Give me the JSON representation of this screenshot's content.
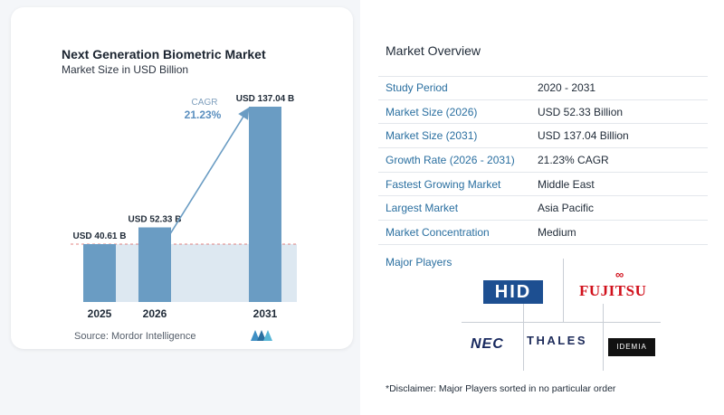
{
  "chart_data": {
    "type": "bar",
    "title": "Next Generation Biometric Market",
    "subtitle": "Market Size in USD Billion",
    "categories": [
      "2025",
      "2026",
      "2031"
    ],
    "values": [
      40.61,
      52.33,
      137.04
    ],
    "data_labels": [
      "USD 40.61 B",
      "USD 52.33 B",
      "USD 137.04 B"
    ],
    "cagr_label": "CAGR",
    "cagr_value": "21.23%",
    "colors": {
      "bar": "#6a9cc3",
      "bar_dark": "#4f86b5",
      "band": "#dde8f1",
      "arrow": "#6a9cc3",
      "cagr_text": "#5b8fbf"
    }
  },
  "source": "Source:  Mordor Intelligence",
  "overview": {
    "title": "Market Overview",
    "rows": [
      {
        "label": "Study Period",
        "value": "2020 - 2031"
      },
      {
        "label": "Market Size (2026)",
        "value": "USD 52.33 Billion"
      },
      {
        "label": "Market Size (2031)",
        "value": "USD 137.04 Billion"
      },
      {
        "label": "Growth Rate (2026 - 2031)",
        "value": "21.23% CAGR"
      },
      {
        "label": "Fastest Growing Market",
        "value": "Middle East"
      },
      {
        "label": "Largest Market",
        "value": "Asia Pacific"
      },
      {
        "label": "Market Concentration",
        "value": "Medium"
      }
    ]
  },
  "players": {
    "title": "Major Players",
    "logos": [
      "HID",
      "FUJITSU",
      "NEC",
      "THALES",
      "IDEMIA"
    ]
  },
  "disclaimer": "*Disclaimer: Major Players sorted in no particular order"
}
